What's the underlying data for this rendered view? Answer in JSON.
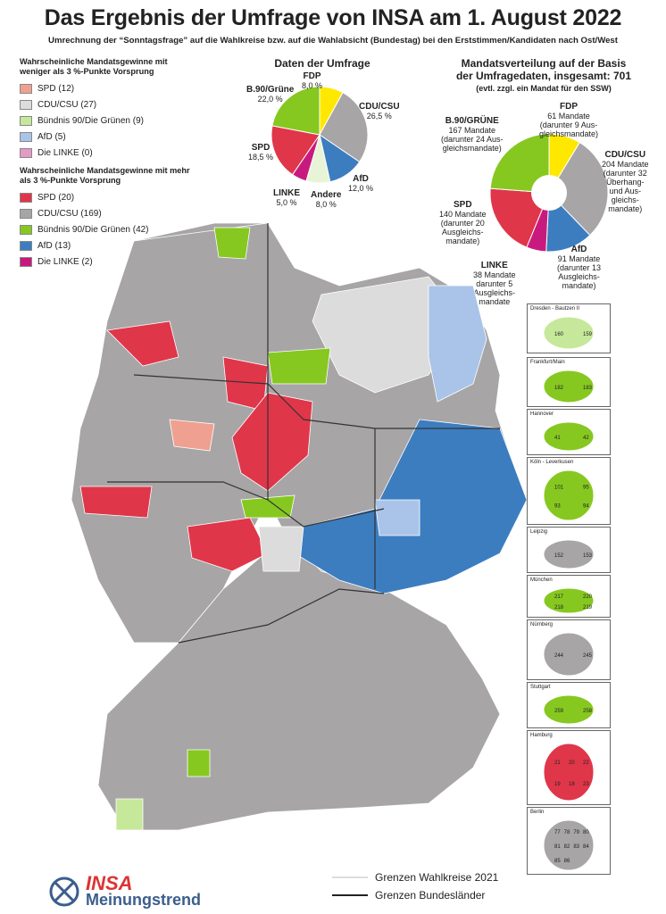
{
  "title": "Das Ergebnis der Umfrage von INSA am 1. August 2022",
  "subtitle": "Umrechnung der “Sonntagsfrage” auf die Wahlkreise bzw. auf die Wahlabsicht (Bundestag) bei den Erststimmen/Kandidaten nach Ost/West",
  "legend": {
    "group1_title": "Wahrscheinliche Mandatsgewinne mit weniger als 3 %-Punkte Vorsprung",
    "group1": [
      {
        "label": "SPD (12)",
        "color": "#f0a090"
      },
      {
        "label": "CDU/CSU (27)",
        "color": "#dcdcdc"
      },
      {
        "label": "Bündnis 90/Die Grünen (9)",
        "color": "#c6e89a"
      },
      {
        "label": "AfD (5)",
        "color": "#a9c4e8"
      },
      {
        "label": "Die LINKE (0)",
        "color": "#e39ac5"
      }
    ],
    "group2_title": "Wahrscheinliche Mandatsgewinne mit mehr als 3 %-Punkte Vorsprung",
    "group2": [
      {
        "label": "SPD (20)",
        "color": "#e0364a"
      },
      {
        "label": "CDU/CSU (169)",
        "color": "#a7a5a6"
      },
      {
        "label": "Bündnis 90/Die Grünen (42)",
        "color": "#86c820"
      },
      {
        "label": "AfD (13)",
        "color": "#3c7dc0"
      },
      {
        "label": "Die LINKE (2)",
        "color": "#c81a7e"
      }
    ]
  },
  "survey_pie": {
    "title": "Daten der Umfrage",
    "labels": {
      "fdp": {
        "name": "FDP",
        "value": "8,0 %"
      },
      "cdu": {
        "name": "CDU/CSU",
        "value": "26,5 %"
      },
      "afd": {
        "name": "AfD",
        "value": "12,0 %"
      },
      "andere": {
        "name": "Andere",
        "value": "8,0 %"
      },
      "linke": {
        "name": "LINKE",
        "value": "5,0 %"
      },
      "spd": {
        "name": "SPD",
        "value": "18,5 %"
      },
      "gruene": {
        "name": "B.90/Grüne",
        "value": "22,0 %"
      }
    },
    "chart_data": {
      "type": "pie",
      "categories": [
        "FDP",
        "CDU/CSU",
        "AfD",
        "Andere",
        "LINKE",
        "SPD",
        "B.90/Grüne"
      ],
      "values": [
        8.0,
        26.5,
        12.0,
        8.0,
        5.0,
        18.5,
        22.0
      ],
      "colors": [
        "#ffe800",
        "#a7a5a6",
        "#3c7dc0",
        "#e8f4d8",
        "#c81a7e",
        "#e0364a",
        "#86c820"
      ]
    }
  },
  "seat_pie": {
    "title_line1": "Mandatsverteilung auf der Basis",
    "title_line2": "der Umfragedaten, insgesamt: 701",
    "title_line3": "(evtl. zzgl. ein Mandat für den SSW)",
    "labels": {
      "fdp": {
        "name": "FDP",
        "lines": [
          "61 Mandate",
          "(darunter 9 Aus-",
          "gleichsmandate)"
        ]
      },
      "cdu": {
        "name": "CDU/CSU",
        "lines": [
          "204 Mandate",
          "(darunter 32",
          "Überhang-",
          "und Aus-",
          "gleichs-",
          "mandate)"
        ]
      },
      "afd": {
        "name": "AfD",
        "lines": [
          "91 Mandate",
          "(darunter 13",
          "Ausgleichs-",
          "mandate)"
        ]
      },
      "linke": {
        "name": "LINKE",
        "lines": [
          "38 Mandate",
          "darunter 5",
          "Ausgleichs-",
          "mandate"
        ]
      },
      "spd": {
        "name": "SPD",
        "lines": [
          "140 Mandate",
          "(darunter 20",
          "Ausgleichs-",
          "mandate)"
        ]
      },
      "gruene": {
        "name": "B.90/GRÜNE",
        "lines": [
          "167 Mandate",
          "(darunter 24 Aus-",
          "gleichsmandate)"
        ]
      }
    },
    "chart_data": {
      "type": "pie",
      "categories": [
        "FDP",
        "CDU/CSU",
        "AfD",
        "LINKE",
        "SPD",
        "B.90/GRÜNE"
      ],
      "values": [
        61,
        204,
        91,
        38,
        140,
        167
      ],
      "colors": [
        "#ffe800",
        "#a7a5a6",
        "#3c7dc0",
        "#c81a7e",
        "#e0364a",
        "#86c820"
      ]
    }
  },
  "insets": [
    {
      "name": "Dresden - Bautzen II",
      "numbers": [
        "160",
        "159"
      ]
    },
    {
      "name": "Frankfurt/Main",
      "numbers": [
        "182",
        "183"
      ]
    },
    {
      "name": "Hannover",
      "numbers": [
        "41",
        "42"
      ]
    },
    {
      "name": "Köln - Leverkusen",
      "numbers": [
        "101",
        "95",
        "93",
        "94"
      ]
    },
    {
      "name": "Leipzig",
      "numbers": [
        "152",
        "153"
      ]
    },
    {
      "name": "München",
      "numbers": [
        "217",
        "220",
        "218",
        "219"
      ]
    },
    {
      "name": "Nürnberg",
      "numbers": [
        "244",
        "245"
      ]
    },
    {
      "name": "Stuttgart",
      "numbers": [
        "259",
        "258"
      ]
    },
    {
      "name": "Hamburg",
      "numbers": [
        "21",
        "20",
        "22",
        "19",
        "18",
        "23"
      ]
    },
    {
      "name": "Berlin",
      "numbers": [
        "77",
        "78",
        "79",
        "80",
        "81",
        "82",
        "83",
        "84",
        "85",
        "86"
      ]
    }
  ],
  "map_legend": {
    "wahlkreise": "Grenzen Wahlkreise 2021",
    "bundeslaender": "Grenzen Bundesländer"
  },
  "logo": {
    "brand": "INSA",
    "sub": "Meinungstrend"
  }
}
